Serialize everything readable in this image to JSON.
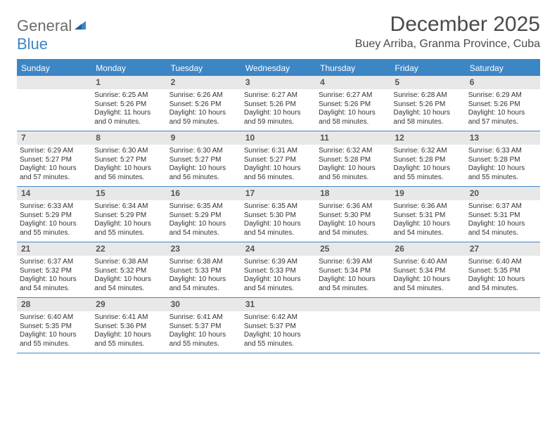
{
  "logo": {
    "general": "General",
    "blue": "Blue"
  },
  "title": "December 2025",
  "location": "Buey Arriba, Granma Province, Cuba",
  "colors": {
    "accent": "#3d86c6",
    "dowBg": "#3d86c6",
    "dowText": "#ffffff",
    "dayNumBg": "#e8e8e8",
    "dayNumText": "#555555",
    "bodyText": "#333333",
    "logoGray": "#6b6b6b",
    "titleText": "#4a4a4a",
    "background": "#ffffff"
  },
  "daysOfWeek": [
    "Sunday",
    "Monday",
    "Tuesday",
    "Wednesday",
    "Thursday",
    "Friday",
    "Saturday"
  ],
  "weeks": [
    [
      {
        "n": "",
        "sr": "",
        "ss": "",
        "dl": ""
      },
      {
        "n": "1",
        "sr": "Sunrise: 6:25 AM",
        "ss": "Sunset: 5:26 PM",
        "dl": "Daylight: 11 hours and 0 minutes."
      },
      {
        "n": "2",
        "sr": "Sunrise: 6:26 AM",
        "ss": "Sunset: 5:26 PM",
        "dl": "Daylight: 10 hours and 59 minutes."
      },
      {
        "n": "3",
        "sr": "Sunrise: 6:27 AM",
        "ss": "Sunset: 5:26 PM",
        "dl": "Daylight: 10 hours and 59 minutes."
      },
      {
        "n": "4",
        "sr": "Sunrise: 6:27 AM",
        "ss": "Sunset: 5:26 PM",
        "dl": "Daylight: 10 hours and 58 minutes."
      },
      {
        "n": "5",
        "sr": "Sunrise: 6:28 AM",
        "ss": "Sunset: 5:26 PM",
        "dl": "Daylight: 10 hours and 58 minutes."
      },
      {
        "n": "6",
        "sr": "Sunrise: 6:29 AM",
        "ss": "Sunset: 5:26 PM",
        "dl": "Daylight: 10 hours and 57 minutes."
      }
    ],
    [
      {
        "n": "7",
        "sr": "Sunrise: 6:29 AM",
        "ss": "Sunset: 5:27 PM",
        "dl": "Daylight: 10 hours and 57 minutes."
      },
      {
        "n": "8",
        "sr": "Sunrise: 6:30 AM",
        "ss": "Sunset: 5:27 PM",
        "dl": "Daylight: 10 hours and 56 minutes."
      },
      {
        "n": "9",
        "sr": "Sunrise: 6:30 AM",
        "ss": "Sunset: 5:27 PM",
        "dl": "Daylight: 10 hours and 56 minutes."
      },
      {
        "n": "10",
        "sr": "Sunrise: 6:31 AM",
        "ss": "Sunset: 5:27 PM",
        "dl": "Daylight: 10 hours and 56 minutes."
      },
      {
        "n": "11",
        "sr": "Sunrise: 6:32 AM",
        "ss": "Sunset: 5:28 PM",
        "dl": "Daylight: 10 hours and 56 minutes."
      },
      {
        "n": "12",
        "sr": "Sunrise: 6:32 AM",
        "ss": "Sunset: 5:28 PM",
        "dl": "Daylight: 10 hours and 55 minutes."
      },
      {
        "n": "13",
        "sr": "Sunrise: 6:33 AM",
        "ss": "Sunset: 5:28 PM",
        "dl": "Daylight: 10 hours and 55 minutes."
      }
    ],
    [
      {
        "n": "14",
        "sr": "Sunrise: 6:33 AM",
        "ss": "Sunset: 5:29 PM",
        "dl": "Daylight: 10 hours and 55 minutes."
      },
      {
        "n": "15",
        "sr": "Sunrise: 6:34 AM",
        "ss": "Sunset: 5:29 PM",
        "dl": "Daylight: 10 hours and 55 minutes."
      },
      {
        "n": "16",
        "sr": "Sunrise: 6:35 AM",
        "ss": "Sunset: 5:29 PM",
        "dl": "Daylight: 10 hours and 54 minutes."
      },
      {
        "n": "17",
        "sr": "Sunrise: 6:35 AM",
        "ss": "Sunset: 5:30 PM",
        "dl": "Daylight: 10 hours and 54 minutes."
      },
      {
        "n": "18",
        "sr": "Sunrise: 6:36 AM",
        "ss": "Sunset: 5:30 PM",
        "dl": "Daylight: 10 hours and 54 minutes."
      },
      {
        "n": "19",
        "sr": "Sunrise: 6:36 AM",
        "ss": "Sunset: 5:31 PM",
        "dl": "Daylight: 10 hours and 54 minutes."
      },
      {
        "n": "20",
        "sr": "Sunrise: 6:37 AM",
        "ss": "Sunset: 5:31 PM",
        "dl": "Daylight: 10 hours and 54 minutes."
      }
    ],
    [
      {
        "n": "21",
        "sr": "Sunrise: 6:37 AM",
        "ss": "Sunset: 5:32 PM",
        "dl": "Daylight: 10 hours and 54 minutes."
      },
      {
        "n": "22",
        "sr": "Sunrise: 6:38 AM",
        "ss": "Sunset: 5:32 PM",
        "dl": "Daylight: 10 hours and 54 minutes."
      },
      {
        "n": "23",
        "sr": "Sunrise: 6:38 AM",
        "ss": "Sunset: 5:33 PM",
        "dl": "Daylight: 10 hours and 54 minutes."
      },
      {
        "n": "24",
        "sr": "Sunrise: 6:39 AM",
        "ss": "Sunset: 5:33 PM",
        "dl": "Daylight: 10 hours and 54 minutes."
      },
      {
        "n": "25",
        "sr": "Sunrise: 6:39 AM",
        "ss": "Sunset: 5:34 PM",
        "dl": "Daylight: 10 hours and 54 minutes."
      },
      {
        "n": "26",
        "sr": "Sunrise: 6:40 AM",
        "ss": "Sunset: 5:34 PM",
        "dl": "Daylight: 10 hours and 54 minutes."
      },
      {
        "n": "27",
        "sr": "Sunrise: 6:40 AM",
        "ss": "Sunset: 5:35 PM",
        "dl": "Daylight: 10 hours and 54 minutes."
      }
    ],
    [
      {
        "n": "28",
        "sr": "Sunrise: 6:40 AM",
        "ss": "Sunset: 5:35 PM",
        "dl": "Daylight: 10 hours and 55 minutes."
      },
      {
        "n": "29",
        "sr": "Sunrise: 6:41 AM",
        "ss": "Sunset: 5:36 PM",
        "dl": "Daylight: 10 hours and 55 minutes."
      },
      {
        "n": "30",
        "sr": "Sunrise: 6:41 AM",
        "ss": "Sunset: 5:37 PM",
        "dl": "Daylight: 10 hours and 55 minutes."
      },
      {
        "n": "31",
        "sr": "Sunrise: 6:42 AM",
        "ss": "Sunset: 5:37 PM",
        "dl": "Daylight: 10 hours and 55 minutes."
      },
      {
        "n": "",
        "sr": "",
        "ss": "",
        "dl": ""
      },
      {
        "n": "",
        "sr": "",
        "ss": "",
        "dl": ""
      },
      {
        "n": "",
        "sr": "",
        "ss": "",
        "dl": ""
      }
    ]
  ]
}
